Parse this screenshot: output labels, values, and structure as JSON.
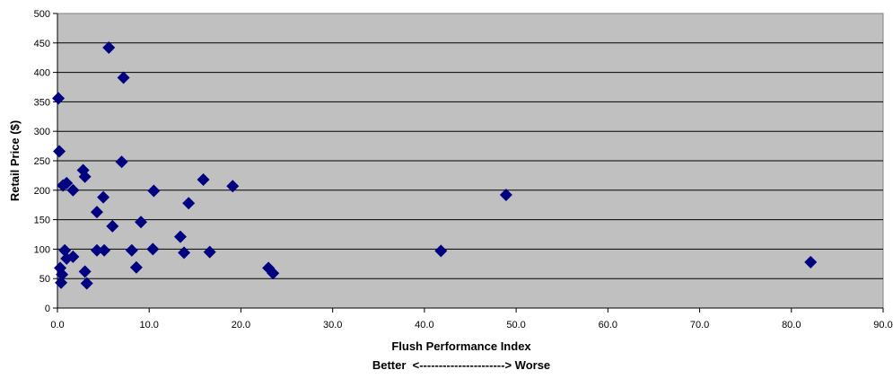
{
  "chart_data": {
    "type": "scatter",
    "title": "",
    "xlabel": "Flush Performance Index",
    "xlabel_note": "Better  <----------------------> Worse",
    "ylabel": "Retail Price ($)",
    "xlim": [
      0,
      90
    ],
    "ylim": [
      0,
      500
    ],
    "x_ticks": [
      "0.0",
      "10.0",
      "20.0",
      "30.0",
      "40.0",
      "50.0",
      "60.0",
      "70.0",
      "80.0",
      "90.0"
    ],
    "y_ticks": [
      "0",
      "50",
      "100",
      "150",
      "200",
      "250",
      "300",
      "350",
      "400",
      "450",
      "500"
    ],
    "grid": "horizontal",
    "legend": "none",
    "colors": {
      "plot_background": "#c0c0c0",
      "marker": "#000080",
      "gridline": "#000000"
    },
    "marker_shape": "diamond",
    "series": [
      {
        "points": [
          {
            "x": 5.6,
            "y": 442
          },
          {
            "x": 7.2,
            "y": 391
          },
          {
            "x": 0.1,
            "y": 356
          },
          {
            "x": 0.2,
            "y": 266
          },
          {
            "x": 7.0,
            "y": 248
          },
          {
            "x": 2.8,
            "y": 234
          },
          {
            "x": 3.0,
            "y": 223
          },
          {
            "x": 15.9,
            "y": 218
          },
          {
            "x": 19.1,
            "y": 207
          },
          {
            "x": 48.9,
            "y": 192
          },
          {
            "x": 0.6,
            "y": 208
          },
          {
            "x": 1.0,
            "y": 212
          },
          {
            "x": 1.7,
            "y": 200
          },
          {
            "x": 10.5,
            "y": 199
          },
          {
            "x": 5.0,
            "y": 188
          },
          {
            "x": 14.3,
            "y": 178
          },
          {
            "x": 4.3,
            "y": 163
          },
          {
            "x": 9.1,
            "y": 146
          },
          {
            "x": 6.0,
            "y": 139
          },
          {
            "x": 13.4,
            "y": 121
          },
          {
            "x": 0.8,
            "y": 98
          },
          {
            "x": 4.3,
            "y": 98
          },
          {
            "x": 5.1,
            "y": 98
          },
          {
            "x": 8.1,
            "y": 98
          },
          {
            "x": 10.4,
            "y": 100
          },
          {
            "x": 13.8,
            "y": 94
          },
          {
            "x": 16.6,
            "y": 95
          },
          {
            "x": 41.8,
            "y": 97
          },
          {
            "x": 82.1,
            "y": 78
          },
          {
            "x": 1.7,
            "y": 87
          },
          {
            "x": 1.0,
            "y": 84
          },
          {
            "x": 0.3,
            "y": 68
          },
          {
            "x": 8.6,
            "y": 69
          },
          {
            "x": 23.0,
            "y": 68
          },
          {
            "x": 23.5,
            "y": 59
          },
          {
            "x": 3.0,
            "y": 62
          },
          {
            "x": 0.5,
            "y": 57
          },
          {
            "x": 0.4,
            "y": 43
          },
          {
            "x": 3.2,
            "y": 42
          }
        ]
      }
    ]
  }
}
